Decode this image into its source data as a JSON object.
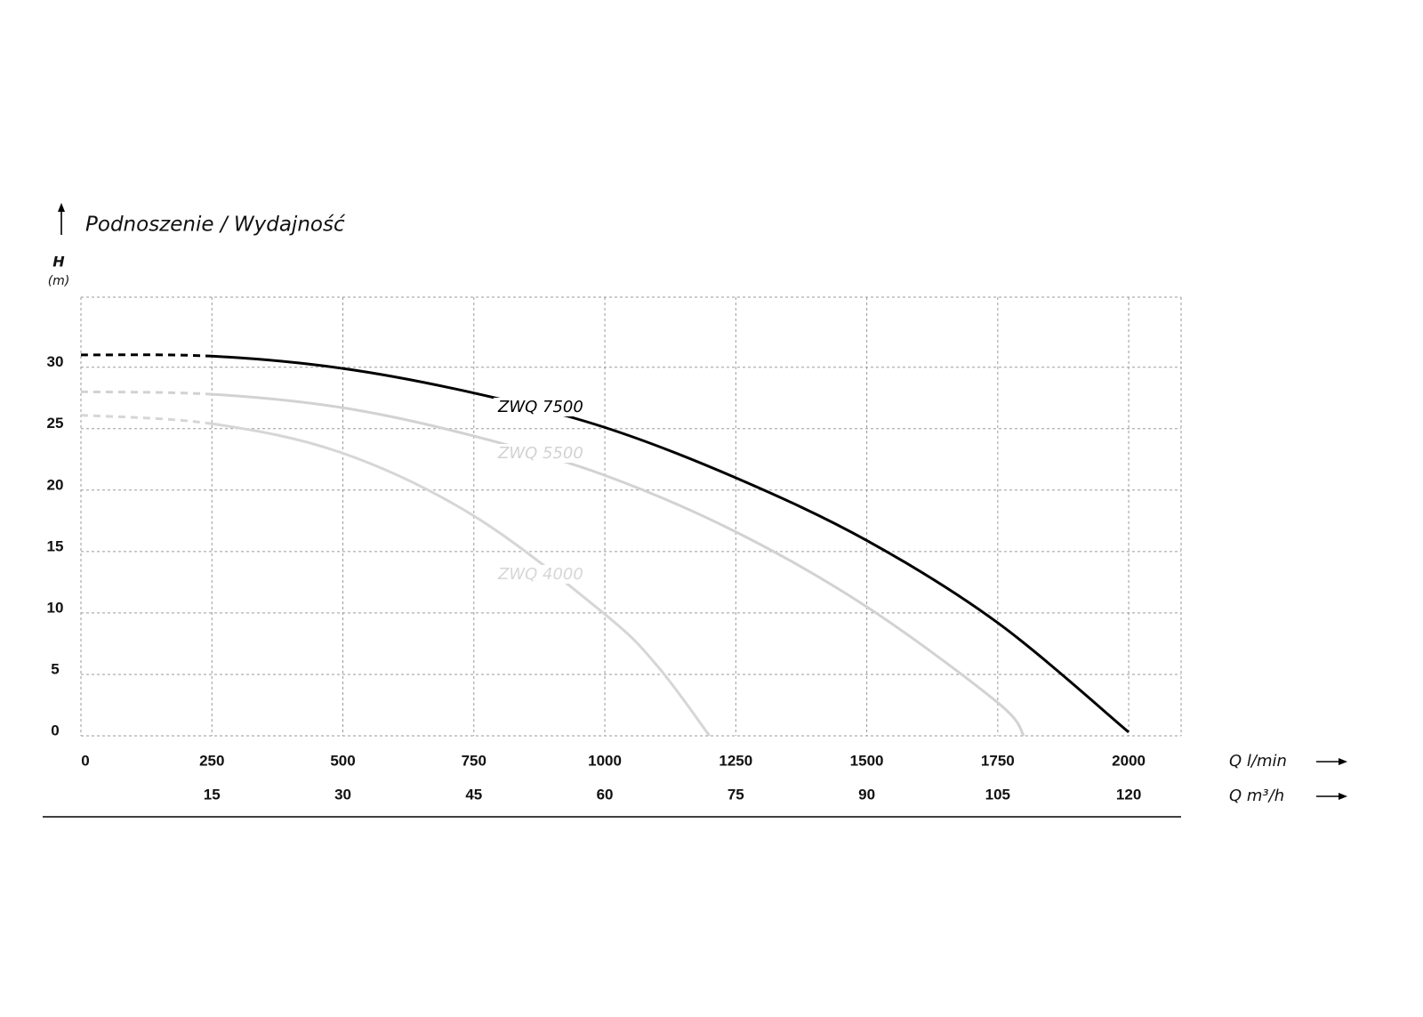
{
  "chart_data": {
    "type": "line",
    "title": "Podnoszenie / Wydajność",
    "ylabel": "H",
    "yunit": "(m)",
    "xlabel": "Q l/min",
    "x2label": "Q m³/h",
    "xlim": [
      0,
      2100
    ],
    "xticks": [
      0,
      250,
      500,
      750,
      1000,
      1250,
      1500,
      1750,
      2000
    ],
    "x2lim": [
      0,
      126
    ],
    "x2ticks": [
      15,
      30,
      45,
      60,
      75,
      90,
      105,
      120
    ],
    "ylim": [
      0,
      35.7
    ],
    "yticks": [
      0,
      5,
      10,
      15,
      20,
      25,
      30
    ],
    "grid": true,
    "series": [
      {
        "name": "ZWQ 7500",
        "color": "#000000",
        "x": [
          0,
          250,
          500,
          750,
          1000,
          1250,
          1500,
          1750,
          2000
        ],
        "values": [
          31.0,
          30.9,
          29.9,
          27.9,
          25.1,
          21.0,
          15.9,
          9.2,
          0.3
        ]
      },
      {
        "name": "ZWQ 5500",
        "color": "#d2d2d2",
        "x": [
          0,
          250,
          500,
          750,
          1000,
          1250,
          1500,
          1750,
          1800
        ],
        "values": [
          28.0,
          27.8,
          26.7,
          24.4,
          21.2,
          16.6,
          10.5,
          2.7,
          0
        ]
      },
      {
        "name": "ZWQ 4000",
        "color": "#d6d6d6",
        "x": [
          0,
          250,
          500,
          750,
          1000,
          1100,
          1200
        ],
        "values": [
          26.1,
          25.4,
          23.0,
          17.9,
          9.9,
          5.7,
          0
        ]
      }
    ]
  }
}
